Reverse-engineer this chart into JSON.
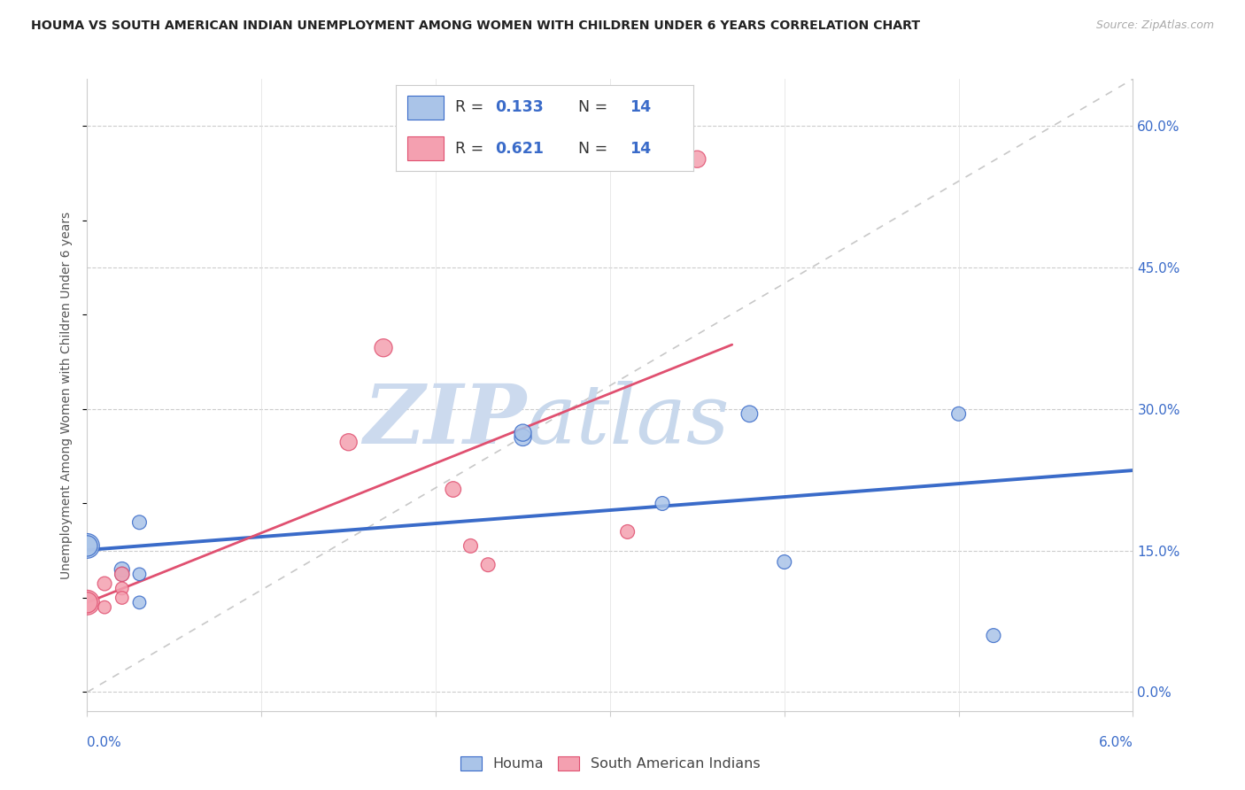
{
  "title": "HOUMA VS SOUTH AMERICAN INDIAN UNEMPLOYMENT AMONG WOMEN WITH CHILDREN UNDER 6 YEARS CORRELATION CHART",
  "source": "Source: ZipAtlas.com",
  "ylabel": "Unemployment Among Women with Children Under 6 years",
  "watermark_zip": "ZIP",
  "watermark_atlas": "atlas",
  "legend_houma_R": "0.133",
  "legend_houma_N": "14",
  "legend_sa_R": "0.621",
  "legend_sa_N": "14",
  "houma_color": "#aac4e8",
  "sa_color": "#f4a0b0",
  "houma_line_color": "#3a6bc9",
  "sa_line_color": "#e05070",
  "grid_color": "#cccccc",
  "xlim": [
    0.0,
    0.06
  ],
  "ylim": [
    -0.02,
    0.65
  ],
  "right_yticks": [
    0.0,
    0.15,
    0.3,
    0.45,
    0.6
  ],
  "right_yticklabels": [
    "0.0%",
    "15.0%",
    "30.0%",
    "45.0%",
    "60.0%"
  ],
  "houma_points": [
    [
      0.0,
      0.155
    ],
    [
      0.0,
      0.155
    ],
    [
      0.002,
      0.13
    ],
    [
      0.002,
      0.125
    ],
    [
      0.003,
      0.18
    ],
    [
      0.003,
      0.125
    ],
    [
      0.003,
      0.095
    ],
    [
      0.025,
      0.27
    ],
    [
      0.025,
      0.275
    ],
    [
      0.033,
      0.2
    ],
    [
      0.038,
      0.295
    ],
    [
      0.04,
      0.138
    ],
    [
      0.05,
      0.295
    ],
    [
      0.052,
      0.06
    ]
  ],
  "sa_points": [
    [
      0.0,
      0.095
    ],
    [
      0.0,
      0.095
    ],
    [
      0.001,
      0.115
    ],
    [
      0.001,
      0.09
    ],
    [
      0.002,
      0.125
    ],
    [
      0.002,
      0.11
    ],
    [
      0.002,
      0.1
    ],
    [
      0.015,
      0.265
    ],
    [
      0.017,
      0.365
    ],
    [
      0.021,
      0.215
    ],
    [
      0.022,
      0.155
    ],
    [
      0.023,
      0.135
    ],
    [
      0.031,
      0.17
    ],
    [
      0.035,
      0.565
    ]
  ],
  "houma_sizes": [
    400,
    280,
    150,
    130,
    130,
    110,
    110,
    190,
    190,
    130,
    180,
    130,
    130,
    130
  ],
  "sa_sizes": [
    400,
    280,
    130,
    110,
    140,
    110,
    110,
    190,
    210,
    160,
    130,
    130,
    130,
    190
  ]
}
